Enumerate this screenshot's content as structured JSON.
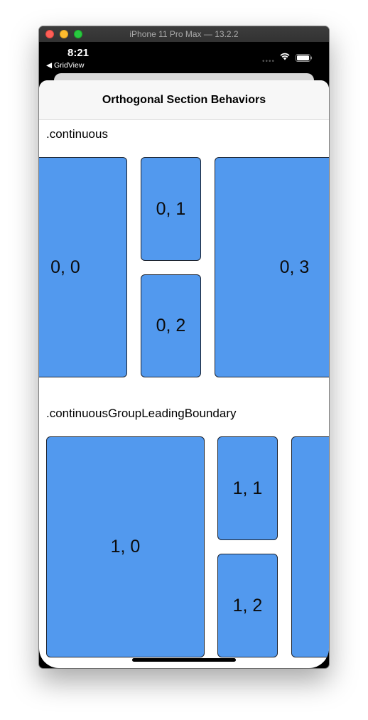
{
  "window": {
    "title": "iPhone 11 Pro Max — 13.2.2"
  },
  "status_bar": {
    "time": "8:21",
    "back_app": "◀ GridView",
    "signal": "••••"
  },
  "nav": {
    "title": "Orthogonal Section Behaviors"
  },
  "sections": [
    {
      "header": ".continuous",
      "cells": [
        "0, 0",
        "0, 1",
        "0, 2",
        "0, 3"
      ]
    },
    {
      "header": ".continuousGroupLeadingBoundary",
      "cells": [
        "1, 0",
        "1, 1",
        "1, 2",
        ""
      ]
    }
  ],
  "colors": {
    "cell": "#5299ee",
    "cell_border": "#1d2430"
  },
  "icons": [
    "wifi-icon",
    "battery-icon",
    "back-arrow-icon"
  ]
}
